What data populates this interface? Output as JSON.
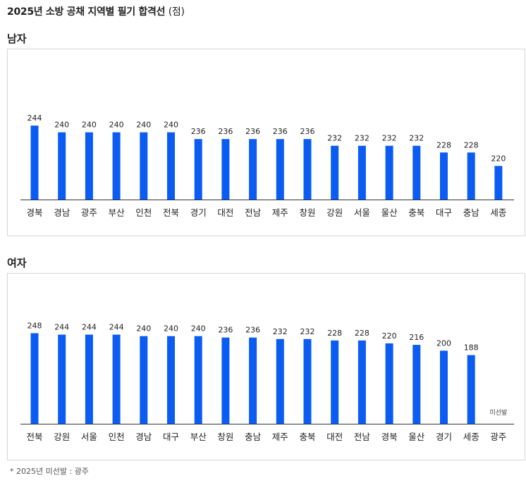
{
  "page": {
    "title": "2025년 소방 공채 지역별 필기 합격선",
    "title_unit": "(점)",
    "footnote": "* 2025년 미선발 : 광주"
  },
  "colors": {
    "bar": "#0a5cf2"
  },
  "chart_data": [
    {
      "type": "bar",
      "title": "남자",
      "categories": [
        "경북",
        "경남",
        "광주",
        "부산",
        "인천",
        "전북",
        "경기",
        "대전",
        "전남",
        "제주",
        "창원",
        "강원",
        "서울",
        "울산",
        "충북",
        "대구",
        "충남",
        "세종"
      ],
      "values": [
        244,
        240,
        240,
        240,
        240,
        240,
        236,
        236,
        236,
        236,
        236,
        232,
        232,
        232,
        232,
        228,
        228,
        220
      ],
      "ylim": [
        200,
        260
      ],
      "grid": false
    },
    {
      "type": "bar",
      "title": "여자",
      "categories": [
        "전북",
        "강원",
        "서울",
        "인천",
        "경남",
        "대구",
        "부산",
        "창원",
        "충남",
        "제주",
        "충북",
        "대전",
        "전남",
        "경북",
        "울산",
        "경기",
        "세종",
        "광주"
      ],
      "values": [
        248,
        244,
        244,
        244,
        240,
        240,
        240,
        236,
        236,
        232,
        232,
        228,
        228,
        220,
        216,
        200,
        188,
        null
      ],
      "missing_label": "미선발",
      "ylim": [
        0,
        276
      ],
      "grid": false
    }
  ]
}
